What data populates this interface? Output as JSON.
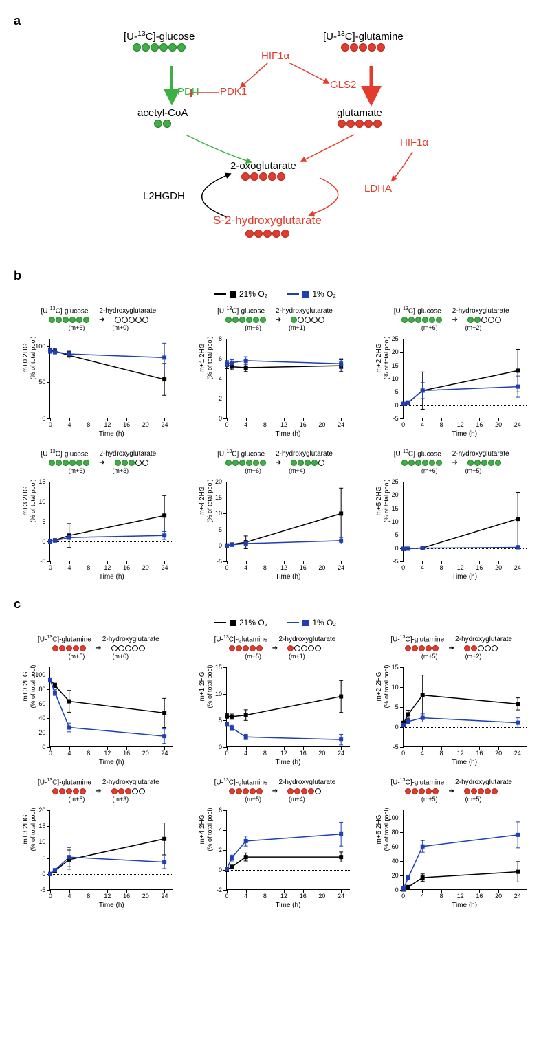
{
  "colors": {
    "black": "#000000",
    "blue": "#1f3fb5",
    "green": "#3cb043",
    "red": "#e53b2c"
  },
  "panelA": {
    "letter": "a",
    "nodes": {
      "glucose": {
        "label": "[U-<sup>13</sup>C]-glucose",
        "circles": 6,
        "color": "green"
      },
      "glutamine": {
        "label": "[U-<sup>13</sup>C]-glutamine",
        "circles": 5,
        "color": "red"
      },
      "hif1a_left": {
        "label": "HIF1α",
        "color": "red"
      },
      "hif1a_right": {
        "label": "HIF1α",
        "color": "red"
      },
      "pdh": {
        "label": "PDH",
        "color": "green"
      },
      "pdk1": {
        "label": "PDK1",
        "color": "red"
      },
      "gls2": {
        "label": "GLS2",
        "color": "red"
      },
      "acetylcoa": {
        "label": "acetyl-CoA",
        "circles": 2,
        "color": "green"
      },
      "glutamate": {
        "label": "glutamate",
        "circles": 5,
        "color": "red"
      },
      "oxoglutarate": {
        "label": "2-oxoglutarate",
        "circles": 5,
        "color": "red"
      },
      "l2hgdh": {
        "label": "L2HGDH",
        "color": "black"
      },
      "ldha": {
        "label": "LDHA",
        "color": "red"
      },
      "s2hg": {
        "label": "S-2-hydroxyglutarate",
        "circles": 5,
        "color": "red"
      }
    }
  },
  "sharedChart": {
    "xlabel": "Time (h)",
    "xlim": [
      0,
      26
    ],
    "xticks": [
      0,
      4,
      8,
      12,
      16,
      20,
      24
    ],
    "timepoints": [
      0,
      1,
      4,
      24
    ],
    "marker_style": "square",
    "marker_size": 6,
    "line_width": 1.5,
    "grid": false
  },
  "legend": {
    "items": [
      {
        "label": "21% O₂",
        "color": "#000000"
      },
      {
        "label": "1% O₂",
        "color": "#1f3fb5"
      }
    ]
  },
  "panelB": {
    "letter": "b",
    "tracer": "glucose",
    "tracer_circles": 6,
    "tracer_color": "green",
    "charts": [
      {
        "m": 0,
        "ylim": [
          0,
          110
        ],
        "yticks": [
          0,
          50,
          100
        ],
        "black": [
          94,
          93,
          87,
          54
        ],
        "blue": [
          93,
          92,
          89,
          84
        ],
        "black_err": [
          3,
          3,
          5,
          22
        ],
        "blue_err": [
          3,
          3,
          4,
          20
        ]
      },
      {
        "m": 1,
        "ylim": [
          0,
          8
        ],
        "yticks": [
          0,
          2,
          4,
          6,
          8
        ],
        "black": [
          5.4,
          5.2,
          5.1,
          5.3
        ],
        "blue": [
          5.5,
          5.6,
          5.8,
          5.5
        ],
        "black_err": [
          0.4,
          0.3,
          0.4,
          0.6
        ],
        "blue_err": [
          0.3,
          0.3,
          0.4,
          0.5
        ]
      },
      {
        "m": 2,
        "ylim": [
          -5,
          25
        ],
        "yticks": [
          -5,
          0,
          5,
          10,
          15,
          20,
          25
        ],
        "black": [
          0.5,
          1,
          5.5,
          13
        ],
        "blue": [
          0.5,
          1,
          5.5,
          7
        ],
        "black_err": [
          0.5,
          0.6,
          7,
          8
        ],
        "blue_err": [
          0.4,
          0.5,
          3,
          4
        ]
      },
      {
        "m": 3,
        "ylim": [
          -5,
          15
        ],
        "yticks": [
          -5,
          0,
          5,
          10,
          15
        ],
        "black": [
          0,
          0.3,
          1.5,
          6.5
        ],
        "blue": [
          0,
          0.2,
          1.0,
          1.5
        ],
        "black_err": [
          0.1,
          0.3,
          3,
          5
        ],
        "blue_err": [
          0.1,
          0.2,
          0.5,
          1
        ]
      },
      {
        "m": 4,
        "ylim": [
          -5,
          20
        ],
        "yticks": [
          -5,
          0,
          5,
          10,
          15,
          20
        ],
        "black": [
          0,
          0.3,
          1,
          10
        ],
        "blue": [
          0,
          0.2,
          0.6,
          1.5
        ],
        "black_err": [
          0.1,
          0.3,
          2,
          8
        ],
        "blue_err": [
          0.1,
          0.2,
          0.4,
          1
        ]
      },
      {
        "m": 5,
        "ylim": [
          -5,
          25
        ],
        "yticks": [
          -5,
          0,
          5,
          10,
          15,
          20,
          25
        ],
        "black": [
          -0.3,
          -0.2,
          0.1,
          11
        ],
        "blue": [
          -0.2,
          -0.2,
          0.0,
          0.3
        ],
        "black_err": [
          0.2,
          0.3,
          0.4,
          10
        ],
        "blue_err": [
          0.2,
          0.2,
          0.3,
          0.5
        ]
      }
    ]
  },
  "panelC": {
    "letter": "c",
    "tracer": "glutamine",
    "tracer_circles": 5,
    "tracer_color": "red",
    "charts": [
      {
        "m": 0,
        "ylim": [
          0,
          110
        ],
        "yticks": [
          0,
          20,
          40,
          60,
          80,
          100
        ],
        "black": [
          93,
          85,
          63,
          47
        ],
        "blue": [
          92,
          75,
          27,
          15
        ],
        "black_err": [
          2,
          3,
          15,
          20
        ],
        "blue_err": [
          2,
          4,
          6,
          10
        ]
      },
      {
        "m": 1,
        "ylim": [
          0,
          15
        ],
        "yticks": [
          0,
          5,
          10,
          15
        ],
        "black": [
          5.8,
          5.7,
          6,
          9.5
        ],
        "blue": [
          4.3,
          3.6,
          1.9,
          1.4
        ],
        "black_err": [
          0.5,
          0.5,
          1,
          3
        ],
        "blue_err": [
          0.4,
          0.5,
          0.5,
          1
        ]
      },
      {
        "m": 2,
        "ylim": [
          -5,
          15
        ],
        "yticks": [
          -5,
          0,
          5,
          10,
          15
        ],
        "black": [
          1,
          3.2,
          8,
          5.8
        ],
        "blue": [
          0.5,
          1.4,
          2.3,
          1.1
        ],
        "black_err": [
          0.5,
          1,
          5,
          1.5
        ],
        "blue_err": [
          0.4,
          0.5,
          1,
          1.2
        ]
      },
      {
        "m": 3,
        "ylim": [
          -5,
          20
        ],
        "yticks": [
          -5,
          0,
          5,
          10,
          15,
          20
        ],
        "black": [
          0,
          1,
          4.5,
          11
        ],
        "blue": [
          0,
          1.2,
          5.3,
          3.7
        ],
        "black_err": [
          0.2,
          0.5,
          3,
          5
        ],
        "blue_err": [
          0.2,
          0.5,
          3,
          2
        ]
      },
      {
        "m": 4,
        "ylim": [
          -2,
          6
        ],
        "yticks": [
          -2,
          0,
          2,
          4,
          6
        ],
        "black": [
          0,
          0.3,
          1.3,
          1.3
        ],
        "blue": [
          0.1,
          1.2,
          2.9,
          3.6
        ],
        "black_err": [
          0.1,
          0.2,
          0.4,
          0.5
        ],
        "blue_err": [
          0.1,
          0.3,
          0.5,
          1.2
        ]
      },
      {
        "m": 5,
        "ylim": [
          0,
          110
        ],
        "yticks": [
          0,
          20,
          40,
          60,
          80,
          100
        ],
        "black": [
          0.5,
          4,
          17,
          25
        ],
        "blue": [
          2,
          17,
          60,
          76
        ],
        "black_err": [
          0.3,
          1,
          5,
          14
        ],
        "blue_err": [
          0.4,
          3,
          8,
          18
        ]
      }
    ]
  }
}
